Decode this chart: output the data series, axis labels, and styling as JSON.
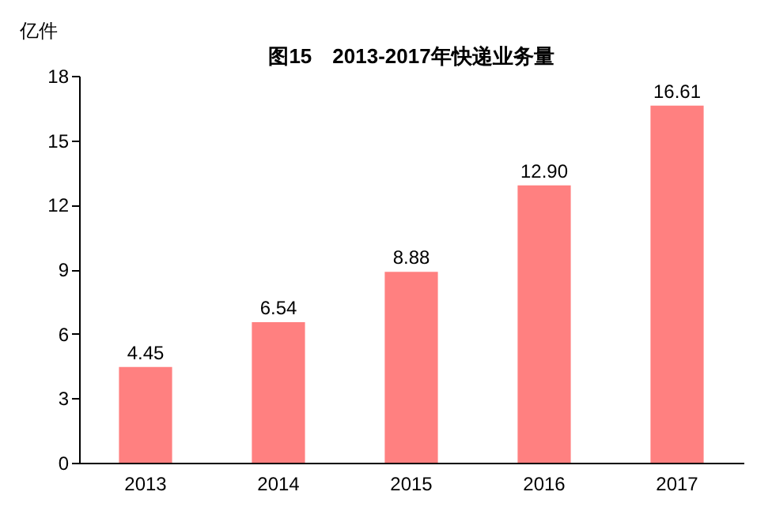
{
  "chart_data": {
    "type": "bar",
    "title": "图15　2013-2017年快递业务量",
    "ylabel": "亿件",
    "categories": [
      "2013",
      "2014",
      "2015",
      "2016",
      "2017"
    ],
    "values": [
      4.45,
      6.54,
      8.88,
      12.9,
      16.61
    ],
    "value_labels": [
      "4.45",
      "6.54",
      "8.88",
      "12.90",
      "16.61"
    ],
    "color": "#ff8080",
    "ylim": [
      0,
      18
    ],
    "yticks": [
      0,
      3,
      6,
      9,
      12,
      15,
      18
    ],
    "grid": false
  }
}
